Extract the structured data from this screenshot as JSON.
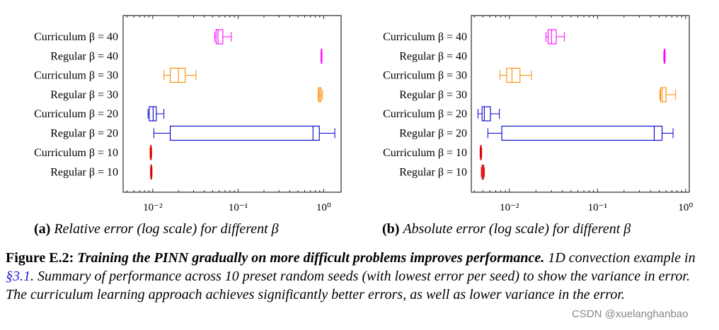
{
  "chart_data": [
    {
      "type": "boxplot",
      "orientation": "horizontal",
      "x_scale": "log",
      "xlim": [
        0.0045,
        1.6
      ],
      "xticks": [
        0.01,
        0.1,
        1
      ],
      "xtick_labels": [
        "10⁻²",
        "10⁻¹",
        "10⁰"
      ],
      "categories": [
        "Curriculum β = 40",
        "Regular β = 40",
        "Curriculum β = 30",
        "Regular β = 30",
        "Curriculum β = 20",
        "Regular β = 20",
        "Curriculum β = 10",
        "Regular β = 10"
      ],
      "colors": [
        "#ff00ff",
        "#ff00ff",
        "#ff8c00",
        "#ff8c00",
        "#0000cc",
        "#0000cc",
        "#dd0000",
        "#dd0000"
      ],
      "boxes": [
        {
          "whislo": 0.053,
          "q1": 0.055,
          "med": 0.058,
          "q3": 0.066,
          "whishi": 0.083
        },
        {
          "whislo": 0.93,
          "q1": 0.935,
          "med": 0.94,
          "q3": 0.945,
          "whishi": 0.95
        },
        {
          "whislo": 0.0135,
          "q1": 0.016,
          "med": 0.02,
          "q3": 0.024,
          "whishi": 0.032
        },
        {
          "whislo": 0.86,
          "q1": 0.87,
          "med": 0.9,
          "q3": 0.93,
          "whishi": 0.97
        },
        {
          "whislo": 0.0088,
          "q1": 0.0091,
          "med": 0.0101,
          "q3": 0.011,
          "whishi": 0.0135
        },
        {
          "whislo": 0.0103,
          "q1": 0.016,
          "med": 0.75,
          "q3": 0.89,
          "whishi": 1.35
        },
        {
          "whislo": 0.0093,
          "q1": 0.0094,
          "med": 0.0095,
          "q3": 0.0096,
          "whishi": 0.0097
        },
        {
          "whislo": 0.0094,
          "q1": 0.0095,
          "med": 0.0096,
          "q3": 0.0097,
          "whishi": 0.0098
        }
      ],
      "caption_label": "(a)",
      "caption_text": "Relative error (log scale) for different β"
    },
    {
      "type": "boxplot",
      "orientation": "horizontal",
      "x_scale": "log",
      "xlim": [
        0.0037,
        1.1
      ],
      "xticks": [
        0.01,
        0.1,
        1
      ],
      "xtick_labels": [
        "10⁻²",
        "10⁻¹",
        "10⁰"
      ],
      "categories": [
        "Curriculum β = 40",
        "Regular β = 40",
        "Curriculum β = 30",
        "Regular β = 30",
        "Curriculum β = 20",
        "Regular β = 20",
        "Curriculum β = 10",
        "Regular β = 10"
      ],
      "colors": [
        "#ff00ff",
        "#ff00ff",
        "#ff8c00",
        "#ff8c00",
        "#0000cc",
        "#0000cc",
        "#dd0000",
        "#dd0000"
      ],
      "boxes": [
        {
          "whislo": 0.026,
          "q1": 0.0275,
          "med": 0.03,
          "q3": 0.034,
          "whishi": 0.042
        },
        {
          "whislo": 0.565,
          "q1": 0.57,
          "med": 0.575,
          "q3": 0.58,
          "whishi": 0.585
        },
        {
          "whislo": 0.0078,
          "q1": 0.0093,
          "med": 0.0107,
          "q3": 0.0132,
          "whishi": 0.0178
        },
        {
          "whislo": 0.51,
          "q1": 0.52,
          "med": 0.54,
          "q3": 0.6,
          "whishi": 0.77
        },
        {
          "whislo": 0.0044,
          "q1": 0.0049,
          "med": 0.0052,
          "q3": 0.0061,
          "whishi": 0.0077
        },
        {
          "whislo": 0.0057,
          "q1": 0.0082,
          "med": 0.44,
          "q3": 0.54,
          "whishi": 0.72
        },
        {
          "whislo": 0.00465,
          "q1": 0.0047,
          "med": 0.00475,
          "q3": 0.0048,
          "whishi": 0.00485
        },
        {
          "whislo": 0.0048,
          "q1": 0.0049,
          "med": 0.005,
          "q3": 0.0051,
          "whishi": 0.0052
        }
      ],
      "caption_label": "(b)",
      "caption_text": "Absolute error (log scale) for different β"
    }
  ],
  "caption": {
    "lead": "Figure E.2:",
    "title": "Training the PINN gradually on more difficult problems improves performance.",
    "body_pre": "1D convection example in",
    "section_ref": "§3.1",
    "body_post": ". Summary of performance across 10 preset random seeds (with lowest error per seed) to show the variance in error. The curriculum learning approach achieves significantly better errors, as well as lower variance in the error."
  },
  "watermark": "CSDN @xuelanghanbao"
}
